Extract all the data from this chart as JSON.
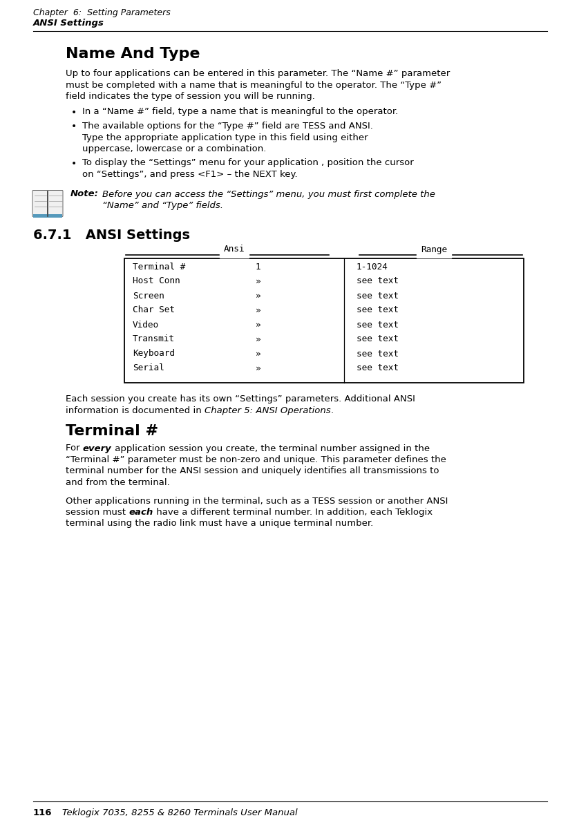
{
  "bg_color": "#ffffff",
  "header_line1": "Chapter  6:  Setting Parameters",
  "header_line2": "ANSI Settings",
  "section_title": "Name And Type",
  "body_text1_lines": [
    "Up to four applications can be entered in this parameter. The “Name #” parameter",
    "must be completed with a name that is meaningful to the operator. The “Type #”",
    "field indicates the type of session you will be running."
  ],
  "bullet1": "In a “Name #” field, type a name that is meaningful to the operator.",
  "bullet2_lines": [
    "The available options for the “Type #” field are TESS and ANSI.",
    "Type the appropriate application type in this field using either",
    "uppercase, lowercase or a combination."
  ],
  "bullet3_lines": [
    "To display the “Settings” menu for your application , position the cursor",
    "on “Settings”, and press <F1> – the NEXT key."
  ],
  "note_label": "Note:",
  "note_text_lines": [
    "Before you can access the “Settings” menu, you must first complete the",
    "“Name” and “Type” fields."
  ],
  "subsection_title": "6.7.1   ANSI Settings",
  "table_col1_header": "Ansi",
  "table_col2_header": "Range",
  "table_rows": [
    [
      "Terminal #",
      "1",
      "1-1024"
    ],
    [
      "Host Conn",
      "»",
      "see text"
    ],
    [
      "Screen",
      "»",
      "see text"
    ],
    [
      "Char Set",
      "»",
      "see text"
    ],
    [
      "Video",
      "»",
      "see text"
    ],
    [
      "Transmit",
      "»",
      "see text"
    ],
    [
      "Keyboard",
      "»",
      "see text"
    ],
    [
      "Serial",
      "»",
      "see text"
    ]
  ],
  "after_table_line1": "Each session you create has its own “Settings” parameters. Additional ANSI",
  "after_table_line2_before": "information is documented in ",
  "after_table_line2_italic": "Chapter 5: ANSI Operations",
  "after_table_line2_after": ".",
  "terminal_title": "Terminal #",
  "t1_before_bold": "For ",
  "t1_bold": "every",
  "t1_after_bold": " application session you create, the terminal number assigned in the",
  "t1_rest_lines": [
    "“Terminal #” parameter must be non-zero and unique. This parameter defines the",
    "terminal number for the ANSI session and uniquely identifies all transmissions to",
    "and from the terminal."
  ],
  "t2_line1": "Other applications running in the terminal, such as a TESS session or another ANSI",
  "t2_before_bold": "session must ",
  "t2_bold": "each",
  "t2_after_bold": " have a different terminal number. In addition, each Teklogix",
  "t2_line3": "terminal using the radio link must have a unique terminal number.",
  "footer_page": "116",
  "footer_text": "Teklogix 7035, 8255 & 8260 Terminals User Manual"
}
